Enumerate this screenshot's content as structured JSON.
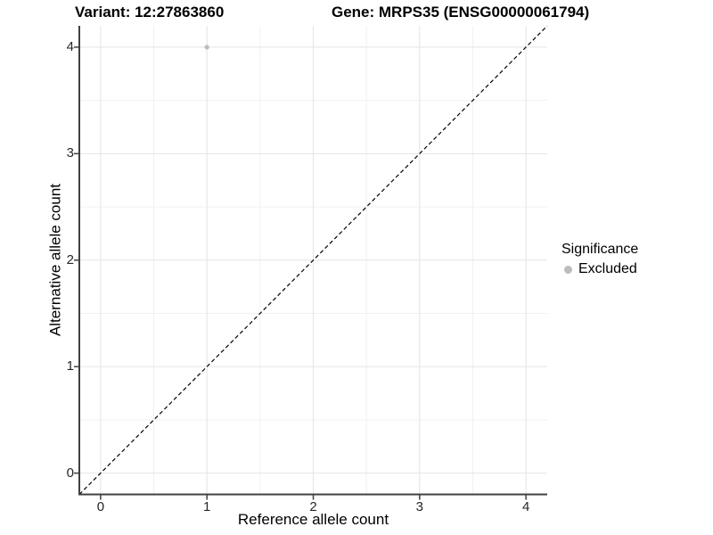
{
  "chart_data": {
    "type": "scatter",
    "titles": [
      "Variant: 12:27863860",
      "Gene: MRPS35 (ENSG00000061794)"
    ],
    "xlabel": "Reference allele count",
    "ylabel": "Alternative allele count",
    "xlim": [
      -0.2,
      4.2
    ],
    "ylim": [
      -0.2,
      4.2
    ],
    "xticks": [
      0,
      1,
      2,
      3,
      4
    ],
    "yticks": [
      0,
      1,
      2,
      3,
      4
    ],
    "xticks_minor": [
      0.5,
      1.5,
      2.5,
      3.5
    ],
    "yticks_minor": [
      0.5,
      1.5,
      2.5,
      3.5
    ],
    "grid": true,
    "legend_position": "right",
    "reference_line": {
      "type": "identity",
      "x1": -0.2,
      "y1": -0.2,
      "x2": 4.2,
      "y2": 4.2,
      "style": "dashed",
      "color": "#000000"
    },
    "series": [
      {
        "name": "Excluded",
        "color": "#bdbdbd",
        "points": [
          {
            "x": 1,
            "y": 4
          }
        ]
      }
    ]
  },
  "legend": {
    "title": "Significance",
    "items": [
      {
        "label": "Excluded",
        "color": "#bdbdbd"
      }
    ]
  },
  "colors": {
    "background": "#ffffff",
    "major_grid": "#e4e4e4",
    "minor_grid": "#f1f1f1",
    "axis_line": "#404040",
    "tick_mark": "#404040",
    "tick_text": "#262626",
    "point": "#bdbdbd"
  }
}
